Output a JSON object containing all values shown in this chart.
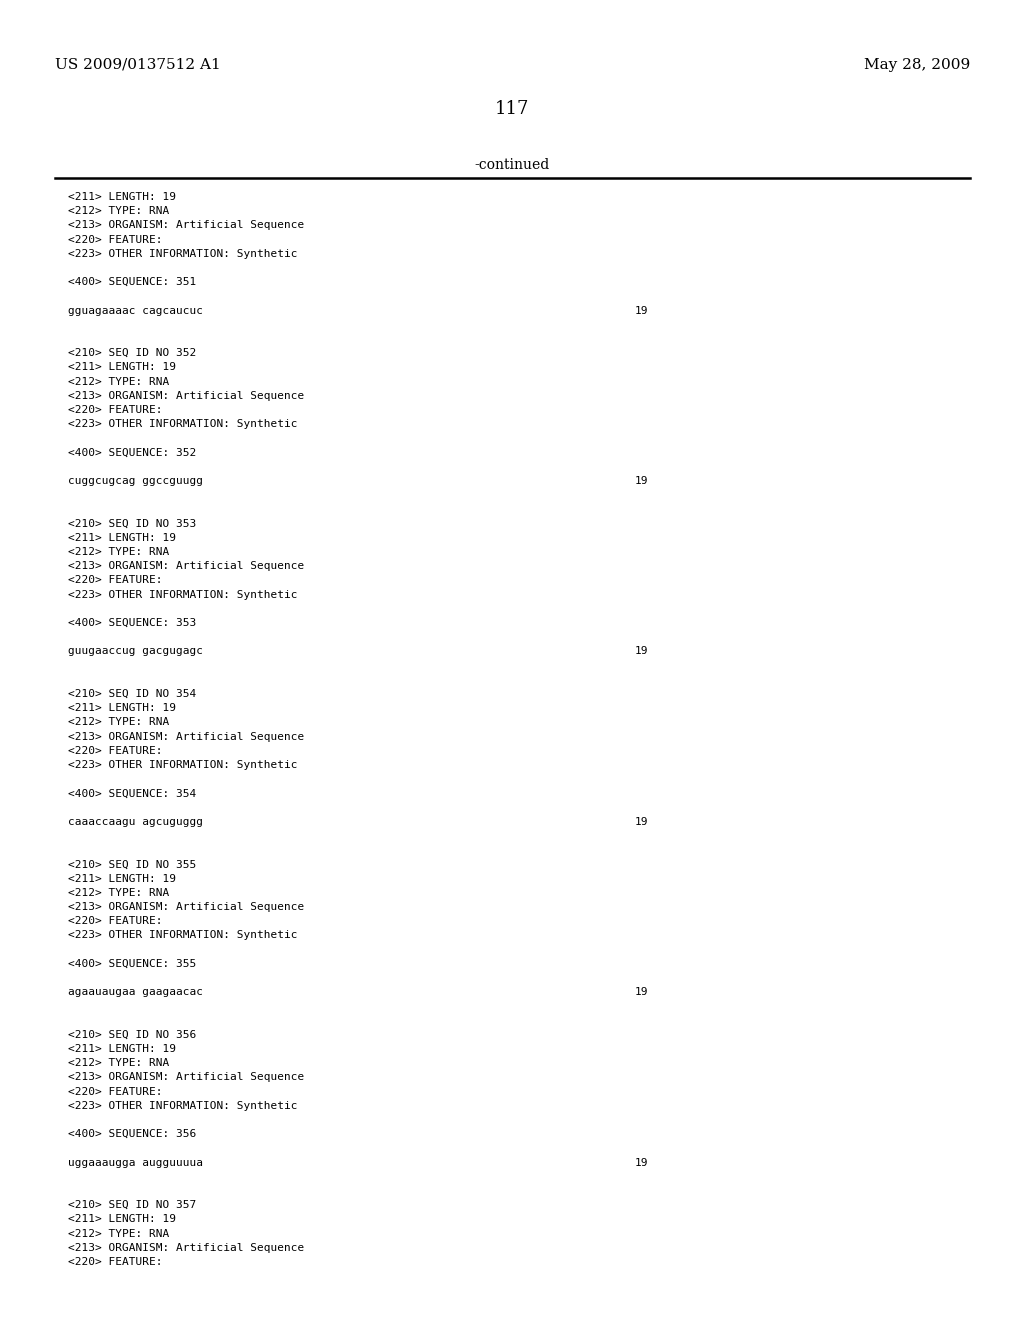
{
  "bg_color": "#ffffff",
  "header_left": "US 2009/0137512 A1",
  "header_right": "May 28, 2009",
  "page_number": "117",
  "continued_label": "-continued",
  "content_lines": [
    {
      "text": "<211> LENGTH: 19",
      "num": null
    },
    {
      "text": "<212> TYPE: RNA",
      "num": null
    },
    {
      "text": "<213> ORGANISM: Artificial Sequence",
      "num": null
    },
    {
      "text": "<220> FEATURE:",
      "num": null
    },
    {
      "text": "<223> OTHER INFORMATION: Synthetic",
      "num": null
    },
    {
      "text": "",
      "num": null
    },
    {
      "text": "<400> SEQUENCE: 351",
      "num": null
    },
    {
      "text": "",
      "num": null
    },
    {
      "text": "gguagaaaac cagcaucuc",
      "num": "19"
    },
    {
      "text": "",
      "num": null
    },
    {
      "text": "",
      "num": null
    },
    {
      "text": "<210> SEQ ID NO 352",
      "num": null
    },
    {
      "text": "<211> LENGTH: 19",
      "num": null
    },
    {
      "text": "<212> TYPE: RNA",
      "num": null
    },
    {
      "text": "<213> ORGANISM: Artificial Sequence",
      "num": null
    },
    {
      "text": "<220> FEATURE:",
      "num": null
    },
    {
      "text": "<223> OTHER INFORMATION: Synthetic",
      "num": null
    },
    {
      "text": "",
      "num": null
    },
    {
      "text": "<400> SEQUENCE: 352",
      "num": null
    },
    {
      "text": "",
      "num": null
    },
    {
      "text": "cuggcugcag ggccguugg",
      "num": "19"
    },
    {
      "text": "",
      "num": null
    },
    {
      "text": "",
      "num": null
    },
    {
      "text": "<210> SEQ ID NO 353",
      "num": null
    },
    {
      "text": "<211> LENGTH: 19",
      "num": null
    },
    {
      "text": "<212> TYPE: RNA",
      "num": null
    },
    {
      "text": "<213> ORGANISM: Artificial Sequence",
      "num": null
    },
    {
      "text": "<220> FEATURE:",
      "num": null
    },
    {
      "text": "<223> OTHER INFORMATION: Synthetic",
      "num": null
    },
    {
      "text": "",
      "num": null
    },
    {
      "text": "<400> SEQUENCE: 353",
      "num": null
    },
    {
      "text": "",
      "num": null
    },
    {
      "text": "guugaaccug gacgugagc",
      "num": "19"
    },
    {
      "text": "",
      "num": null
    },
    {
      "text": "",
      "num": null
    },
    {
      "text": "<210> SEQ ID NO 354",
      "num": null
    },
    {
      "text": "<211> LENGTH: 19",
      "num": null
    },
    {
      "text": "<212> TYPE: RNA",
      "num": null
    },
    {
      "text": "<213> ORGANISM: Artificial Sequence",
      "num": null
    },
    {
      "text": "<220> FEATURE:",
      "num": null
    },
    {
      "text": "<223> OTHER INFORMATION: Synthetic",
      "num": null
    },
    {
      "text": "",
      "num": null
    },
    {
      "text": "<400> SEQUENCE: 354",
      "num": null
    },
    {
      "text": "",
      "num": null
    },
    {
      "text": "caaaccaagu agcuguggg",
      "num": "19"
    },
    {
      "text": "",
      "num": null
    },
    {
      "text": "",
      "num": null
    },
    {
      "text": "<210> SEQ ID NO 355",
      "num": null
    },
    {
      "text": "<211> LENGTH: 19",
      "num": null
    },
    {
      "text": "<212> TYPE: RNA",
      "num": null
    },
    {
      "text": "<213> ORGANISM: Artificial Sequence",
      "num": null
    },
    {
      "text": "<220> FEATURE:",
      "num": null
    },
    {
      "text": "<223> OTHER INFORMATION: Synthetic",
      "num": null
    },
    {
      "text": "",
      "num": null
    },
    {
      "text": "<400> SEQUENCE: 355",
      "num": null
    },
    {
      "text": "",
      "num": null
    },
    {
      "text": "agaauaugaa gaagaacac",
      "num": "19"
    },
    {
      "text": "",
      "num": null
    },
    {
      "text": "",
      "num": null
    },
    {
      "text": "<210> SEQ ID NO 356",
      "num": null
    },
    {
      "text": "<211> LENGTH: 19",
      "num": null
    },
    {
      "text": "<212> TYPE: RNA",
      "num": null
    },
    {
      "text": "<213> ORGANISM: Artificial Sequence",
      "num": null
    },
    {
      "text": "<220> FEATURE:",
      "num": null
    },
    {
      "text": "<223> OTHER INFORMATION: Synthetic",
      "num": null
    },
    {
      "text": "",
      "num": null
    },
    {
      "text": "<400> SEQUENCE: 356",
      "num": null
    },
    {
      "text": "",
      "num": null
    },
    {
      "text": "uggaaaugga augguuuua",
      "num": "19"
    },
    {
      "text": "",
      "num": null
    },
    {
      "text": "",
      "num": null
    },
    {
      "text": "<210> SEQ ID NO 357",
      "num": null
    },
    {
      "text": "<211> LENGTH: 19",
      "num": null
    },
    {
      "text": "<212> TYPE: RNA",
      "num": null
    },
    {
      "text": "<213> ORGANISM: Artificial Sequence",
      "num": null
    },
    {
      "text": "<220> FEATURE:",
      "num": null
    }
  ]
}
